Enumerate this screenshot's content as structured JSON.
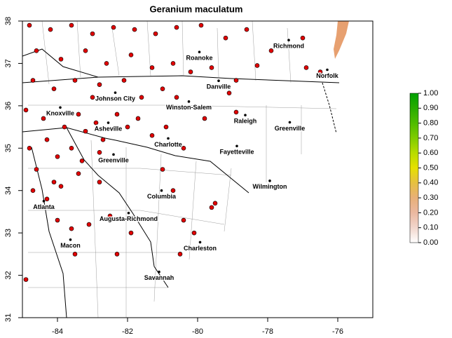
{
  "chart_data": {
    "type": "map",
    "title": "Geranium maculatum",
    "xlim": [
      -85,
      -75
    ],
    "ylim": [
      31,
      38
    ],
    "xticks": [
      -84,
      -82,
      -80,
      -78,
      -76
    ],
    "yticks": [
      31,
      32,
      33,
      34,
      35,
      36,
      37,
      38
    ],
    "point_color": "#e00000",
    "colorbar": {
      "lim": [
        0,
        1
      ],
      "ticks": [
        {
          "value": 0,
          "label": "0.00"
        },
        {
          "value": 0.1,
          "label": "0.10"
        },
        {
          "value": 0.2,
          "label": "0.20"
        },
        {
          "value": 0.3,
          "label": "0.30"
        },
        {
          "value": 0.4,
          "label": "0.40"
        },
        {
          "value": 0.5,
          "label": "0.50"
        },
        {
          "value": 0.6,
          "label": "0.60"
        },
        {
          "value": 0.7,
          "label": "0.70"
        },
        {
          "value": 0.8,
          "label": "0.80"
        },
        {
          "value": 0.9,
          "label": "0.90"
        },
        {
          "value": 1,
          "label": "1.00"
        }
      ],
      "colors": [
        "#ffffff",
        "#f2d6cc",
        "#ebb8a0",
        "#e8b078",
        "#e6c040",
        "#e6e000",
        "#b8dc00",
        "#80cc00",
        "#50bc00",
        "#28ac00",
        "#00a000"
      ]
    },
    "cities": [
      {
        "name": "Richmond",
        "lon": -77.4,
        "lat": 37.55
      },
      {
        "name": "Norfolk",
        "lon": -76.3,
        "lat": 36.85
      },
      {
        "name": "Roanoke",
        "lon": -79.95,
        "lat": 37.27
      },
      {
        "name": "Danville",
        "lon": -79.4,
        "lat": 36.59
      },
      {
        "name": "Johnson City",
        "lon": -82.35,
        "lat": 36.31
      },
      {
        "name": "Winston-Salem",
        "lon": -80.25,
        "lat": 36.1
      },
      {
        "name": "Knoxville",
        "lon": -83.92,
        "lat": 35.96
      },
      {
        "name": "Raleigh",
        "lon": -78.64,
        "lat": 35.78
      },
      {
        "name": "Greenville",
        "lon": -77.37,
        "lat": 35.61
      },
      {
        "name": "Asheville",
        "lon": -82.55,
        "lat": 35.6
      },
      {
        "name": "Charlotte",
        "lon": -80.84,
        "lat": 35.23
      },
      {
        "name": "Fayetteville",
        "lon": -78.88,
        "lat": 35.05
      },
      {
        "name": "Greenville",
        "lon": -82.4,
        "lat": 34.85
      },
      {
        "name": "Wilmington",
        "lon": -77.94,
        "lat": 34.23
      },
      {
        "name": "Columbia",
        "lon": -81.03,
        "lat": 34.0
      },
      {
        "name": "Atlanta",
        "lon": -84.39,
        "lat": 33.75
      },
      {
        "name": "Augusta-Richmond",
        "lon": -81.97,
        "lat": 33.47
      },
      {
        "name": "Macon",
        "lon": -83.63,
        "lat": 32.84
      },
      {
        "name": "Charleston",
        "lon": -79.93,
        "lat": 32.78
      },
      {
        "name": "Savannah",
        "lon": -81.1,
        "lat": 32.08
      }
    ],
    "occurrences": [
      [
        -84.8,
        37.9
      ],
      [
        -84.2,
        37.8
      ],
      [
        -83.6,
        37.9
      ],
      [
        -83.0,
        37.7
      ],
      [
        -82.4,
        37.85
      ],
      [
        -81.8,
        37.8
      ],
      [
        -81.2,
        37.7
      ],
      [
        -80.6,
        37.85
      ],
      [
        -79.9,
        37.9
      ],
      [
        -79.2,
        37.6
      ],
      [
        -78.6,
        37.8
      ],
      [
        -77.9,
        37.3
      ],
      [
        -84.6,
        37.3
      ],
      [
        -83.9,
        37.1
      ],
      [
        -83.2,
        37.3
      ],
      [
        -82.6,
        37.0
      ],
      [
        -81.9,
        37.2
      ],
      [
        -81.3,
        36.9
      ],
      [
        -80.7,
        37.0
      ],
      [
        -80.2,
        36.8
      ],
      [
        -79.6,
        36.9
      ],
      [
        -78.9,
        36.6
      ],
      [
        -78.3,
        36.95
      ],
      [
        -84.7,
        36.6
      ],
      [
        -84.1,
        36.4
      ],
      [
        -83.5,
        36.6
      ],
      [
        -83.0,
        36.2
      ],
      [
        -82.8,
        36.5
      ],
      [
        -82.1,
        36.6
      ],
      [
        -81.6,
        36.2
      ],
      [
        -81.0,
        36.4
      ],
      [
        -80.6,
        36.2
      ],
      [
        -79.1,
        36.3
      ],
      [
        -78.9,
        35.85
      ],
      [
        -84.9,
        35.9
      ],
      [
        -84.4,
        35.7
      ],
      [
        -83.8,
        35.5
      ],
      [
        -83.4,
        35.8
      ],
      [
        -83.2,
        35.4
      ],
      [
        -82.9,
        35.6
      ],
      [
        -82.7,
        35.2
      ],
      [
        -82.3,
        35.8
      ],
      [
        -82.0,
        35.5
      ],
      [
        -81.7,
        35.7
      ],
      [
        -81.3,
        35.3
      ],
      [
        -80.9,
        35.5
      ],
      [
        -80.4,
        35.0
      ],
      [
        -79.8,
        35.7
      ],
      [
        -84.8,
        35.0
      ],
      [
        -84.3,
        35.2
      ],
      [
        -84.0,
        34.8
      ],
      [
        -83.6,
        35.0
      ],
      [
        -83.3,
        34.7
      ],
      [
        -82.8,
        34.9
      ],
      [
        -84.6,
        34.5
      ],
      [
        -84.1,
        34.2
      ],
      [
        -84.7,
        34.0
      ],
      [
        -84.3,
        33.8
      ],
      [
        -83.9,
        34.1
      ],
      [
        -83.4,
        34.4
      ],
      [
        -82.8,
        34.2
      ],
      [
        -84.0,
        33.3
      ],
      [
        -83.6,
        33.1
      ],
      [
        -83.1,
        33.2
      ],
      [
        -82.5,
        33.4
      ],
      [
        -83.5,
        32.5
      ],
      [
        -81.0,
        34.5
      ],
      [
        -80.7,
        34.0
      ],
      [
        -80.4,
        33.3
      ],
      [
        -80.1,
        33.0
      ],
      [
        -79.5,
        33.7
      ],
      [
        -81.9,
        33.0
      ],
      [
        -82.3,
        32.5
      ],
      [
        -84.9,
        31.9
      ],
      [
        -80.5,
        32.5
      ],
      [
        -79.6,
        33.6
      ],
      [
        -76.5,
        36.8
      ],
      [
        -77.0,
        37.6
      ],
      [
        -76.9,
        36.9
      ]
    ]
  }
}
